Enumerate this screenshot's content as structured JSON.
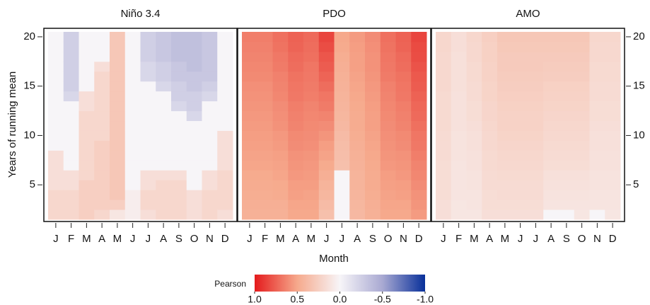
{
  "figure": {
    "xlabel": "Month",
    "ylabel": "Years of running mean",
    "colorbar": {
      "label": "Pearson",
      "lim": [
        1,
        -1
      ],
      "ticks": [
        {
          "value": 1,
          "label": "1.0"
        },
        {
          "value": 0.5,
          "label": "0.5"
        },
        {
          "value": 0,
          "label": "0.0"
        },
        {
          "value": -0.5,
          "label": "-0.5"
        },
        {
          "value": -1,
          "label": "-1.0"
        }
      ],
      "colors": [
        {
          "value": 1,
          "color": "#e41a1c"
        },
        {
          "value": 0.5,
          "color": "#f6a98c"
        },
        {
          "value": 0,
          "color": "#f7f5f8"
        },
        {
          "value": -0.5,
          "color": "#a9a9d2"
        },
        {
          "value": -1,
          "color": "#08309a"
        }
      ]
    }
  },
  "chart_data": [
    {
      "type": "heatmap",
      "title": "Niño 3.4",
      "ytick_side": "left",
      "categories": [
        "J",
        "F",
        "M",
        "A",
        "M",
        "J",
        "J",
        "A",
        "S",
        "O",
        "N",
        "D"
      ],
      "y": [
        2,
        3,
        4,
        5,
        6,
        7,
        8,
        9,
        10,
        11,
        12,
        13,
        14,
        15,
        16,
        17,
        18,
        19,
        20
      ],
      "ylim": [
        1.5,
        20.5
      ],
      "yticks": [
        5,
        10,
        15,
        20
      ],
      "values": [
        [
          0.2,
          0.2,
          0.2,
          0.15,
          0.15,
          0.15,
          0.15,
          0,
          0,
          0,
          0,
          0,
          0,
          0,
          0,
          0,
          0,
          0,
          0
        ],
        [
          0.2,
          0.2,
          0.2,
          0.15,
          0.15,
          0,
          0,
          0,
          0,
          0,
          0,
          0,
          -0.2,
          -0.25,
          -0.25,
          -0.25,
          -0.25,
          -0.25,
          -0.25
        ],
        [
          0.25,
          0.25,
          0.25,
          0.25,
          0.2,
          0.2,
          0.2,
          0.2,
          0.2,
          0.2,
          0.2,
          0.15,
          0.15,
          0,
          0,
          0,
          0,
          0,
          0
        ],
        [
          0.2,
          0.25,
          0.25,
          0.25,
          0.25,
          0.25,
          0.25,
          0.25,
          0.2,
          0.2,
          0.2,
          0.2,
          0.2,
          0.2,
          0.2,
          0.15,
          0,
          0,
          0
        ],
        [
          0.1,
          0.25,
          0.3,
          0.3,
          0.3,
          0.3,
          0.3,
          0.3,
          0.3,
          0.3,
          0.3,
          0.3,
          0.3,
          0.3,
          0.3,
          0.3,
          0.3,
          0.3,
          0.3
        ],
        [
          0.05,
          0.05,
          0.05,
          0,
          0,
          0,
          0,
          0,
          0,
          0,
          0,
          0,
          0,
          0,
          0,
          0,
          0,
          0,
          0
        ],
        [
          0.15,
          0.2,
          0.2,
          0.15,
          0.15,
          0,
          0,
          0,
          0,
          0,
          0,
          0,
          0,
          0,
          -0.2,
          -0.2,
          -0.25,
          -0.25,
          -0.25
        ],
        [
          0.2,
          0.2,
          0.2,
          0.2,
          0.15,
          0,
          0,
          0,
          0,
          0,
          0,
          0,
          0,
          -0.2,
          -0.25,
          -0.25,
          -0.3,
          -0.3,
          -0.3
        ],
        [
          0.2,
          0.2,
          0.2,
          0.2,
          0.15,
          0,
          0,
          0,
          0,
          0,
          0,
          -0.2,
          -0.25,
          -0.25,
          -0.3,
          -0.3,
          -0.35,
          -0.35,
          -0.35
        ],
        [
          0.15,
          0.15,
          0.15,
          0,
          0,
          0,
          0,
          0,
          0,
          0,
          -0.2,
          -0.25,
          -0.25,
          -0.3,
          -0.3,
          -0.35,
          -0.35,
          -0.35,
          -0.35
        ],
        [
          0.2,
          0.2,
          0.2,
          0.15,
          0.15,
          0,
          0,
          0,
          0,
          0,
          0,
          0,
          -0.2,
          -0.25,
          -0.3,
          -0.3,
          -0.3,
          -0.3,
          -0.3
        ],
        [
          0.15,
          0.2,
          0.2,
          0.2,
          0.2,
          0.15,
          0.15,
          0.15,
          0.15,
          0,
          0,
          0,
          0,
          0,
          0,
          0,
          0,
          0,
          0
        ]
      ]
    },
    {
      "type": "heatmap",
      "title": "PDO",
      "categories": [
        "J",
        "F",
        "M",
        "A",
        "M",
        "J",
        "J",
        "A",
        "S",
        "O",
        "N",
        "D"
      ],
      "y": [
        2,
        3,
        4,
        5,
        6,
        7,
        8,
        9,
        10,
        11,
        12,
        13,
        14,
        15,
        16,
        17,
        18,
        19,
        20
      ],
      "ylim": [
        1.5,
        20.5
      ],
      "values": [
        [
          0.45,
          0.46,
          0.47,
          0.48,
          0.49,
          0.51,
          0.52,
          0.53,
          0.54,
          0.55,
          0.56,
          0.57,
          0.58,
          0.59,
          0.61,
          0.62,
          0.63,
          0.64,
          0.65
        ],
        [
          0.45,
          0.46,
          0.47,
          0.48,
          0.49,
          0.51,
          0.52,
          0.53,
          0.54,
          0.55,
          0.56,
          0.57,
          0.58,
          0.59,
          0.61,
          0.62,
          0.63,
          0.64,
          0.65
        ],
        [
          0.45,
          0.46,
          0.48,
          0.49,
          0.51,
          0.52,
          0.53,
          0.55,
          0.56,
          0.58,
          0.59,
          0.6,
          0.62,
          0.63,
          0.64,
          0.66,
          0.67,
          0.69,
          0.7
        ],
        [
          0.5,
          0.51,
          0.53,
          0.54,
          0.56,
          0.57,
          0.58,
          0.6,
          0.61,
          0.63,
          0.64,
          0.65,
          0.67,
          0.68,
          0.69,
          0.71,
          0.72,
          0.74,
          0.75
        ],
        [
          0.5,
          0.51,
          0.52,
          0.54,
          0.55,
          0.56,
          0.57,
          0.59,
          0.6,
          0.61,
          0.62,
          0.63,
          0.65,
          0.66,
          0.67,
          0.68,
          0.7,
          0.71,
          0.72
        ],
        [
          0.35,
          0.38,
          0.41,
          0.43,
          0.46,
          0.49,
          0.52,
          0.54,
          0.57,
          0.6,
          0.63,
          0.66,
          0.68,
          0.71,
          0.74,
          0.77,
          0.79,
          0.82,
          0.85
        ],
        [
          0,
          0,
          0,
          0,
          0,
          0.35,
          0.36,
          0.37,
          0.38,
          0.4,
          0.41,
          0.42,
          0.43,
          0.44,
          0.45,
          0.46,
          0.47,
          0.49,
          0.5
        ],
        [
          0.4,
          0.41,
          0.42,
          0.43,
          0.43,
          0.44,
          0.45,
          0.46,
          0.47,
          0.48,
          0.48,
          0.49,
          0.5,
          0.51,
          0.52,
          0.53,
          0.53,
          0.54,
          0.55
        ],
        [
          0.45,
          0.46,
          0.47,
          0.48,
          0.48,
          0.49,
          0.5,
          0.51,
          0.52,
          0.53,
          0.53,
          0.54,
          0.55,
          0.56,
          0.57,
          0.58,
          0.58,
          0.59,
          0.6
        ],
        [
          0.5,
          0.51,
          0.52,
          0.53,
          0.54,
          0.56,
          0.57,
          0.58,
          0.59,
          0.6,
          0.61,
          0.62,
          0.63,
          0.64,
          0.66,
          0.67,
          0.68,
          0.69,
          0.7
        ],
        [
          0.5,
          0.51,
          0.53,
          0.54,
          0.56,
          0.57,
          0.58,
          0.6,
          0.61,
          0.63,
          0.64,
          0.65,
          0.67,
          0.68,
          0.69,
          0.71,
          0.72,
          0.74,
          0.75
        ],
        [
          0.55,
          0.57,
          0.58,
          0.6,
          0.62,
          0.63,
          0.65,
          0.67,
          0.68,
          0.7,
          0.72,
          0.73,
          0.75,
          0.77,
          0.78,
          0.8,
          0.82,
          0.83,
          0.85
        ]
      ]
    },
    {
      "type": "heatmap",
      "title": "AMO",
      "ytick_side": "right",
      "categories": [
        "J",
        "F",
        "M",
        "A",
        "M",
        "J",
        "J",
        "A",
        "S",
        "O",
        "N",
        "D"
      ],
      "y": [
        2,
        3,
        4,
        5,
        6,
        7,
        8,
        9,
        10,
        11,
        12,
        13,
        14,
        15,
        16,
        17,
        18,
        19,
        20
      ],
      "ylim": [
        1.5,
        20.5
      ],
      "yticks": [
        5,
        10,
        15,
        20
      ],
      "values": [
        [
          0.15,
          0.15,
          0.16,
          0.16,
          0.16,
          0.16,
          0.17,
          0.17,
          0.17,
          0.18,
          0.18,
          0.18,
          0.18,
          0.19,
          0.19,
          0.19,
          0.19,
          0.2,
          0.2
        ],
        [
          0.1,
          0.1,
          0.11,
          0.11,
          0.11,
          0.11,
          0.12,
          0.12,
          0.12,
          0.13,
          0.13,
          0.13,
          0.13,
          0.14,
          0.14,
          0.14,
          0.14,
          0.15,
          0.15
        ],
        [
          0.1,
          0.11,
          0.11,
          0.12,
          0.12,
          0.13,
          0.13,
          0.14,
          0.14,
          0.15,
          0.16,
          0.16,
          0.17,
          0.17,
          0.18,
          0.18,
          0.19,
          0.19,
          0.2
        ],
        [
          0.15,
          0.16,
          0.16,
          0.17,
          0.17,
          0.18,
          0.18,
          0.19,
          0.19,
          0.2,
          0.21,
          0.21,
          0.22,
          0.22,
          0.23,
          0.23,
          0.24,
          0.24,
          0.25
        ],
        [
          0.15,
          0.16,
          0.17,
          0.17,
          0.18,
          0.19,
          0.2,
          0.21,
          0.22,
          0.23,
          0.23,
          0.24,
          0.25,
          0.26,
          0.27,
          0.28,
          0.28,
          0.29,
          0.3
        ],
        [
          0.15,
          0.16,
          0.17,
          0.17,
          0.18,
          0.19,
          0.2,
          0.21,
          0.22,
          0.23,
          0.23,
          0.24,
          0.25,
          0.26,
          0.27,
          0.28,
          0.28,
          0.29,
          0.3
        ],
        [
          0.15,
          0.16,
          0.17,
          0.17,
          0.18,
          0.19,
          0.2,
          0.21,
          0.22,
          0.23,
          0.23,
          0.24,
          0.25,
          0.26,
          0.27,
          0.28,
          0.28,
          0.29,
          0.3
        ],
        [
          0,
          0.11,
          0.12,
          0.13,
          0.14,
          0.16,
          0.17,
          0.18,
          0.19,
          0.2,
          0.21,
          0.22,
          0.23,
          0.24,
          0.26,
          0.27,
          0.28,
          0.29,
          0.3
        ],
        [
          0,
          0.11,
          0.12,
          0.13,
          0.14,
          0.16,
          0.17,
          0.18,
          0.19,
          0.2,
          0.21,
          0.22,
          0.23,
          0.24,
          0.26,
          0.27,
          0.28,
          0.29,
          0.3
        ],
        [
          0.1,
          0.11,
          0.12,
          0.13,
          0.14,
          0.16,
          0.17,
          0.18,
          0.19,
          0.2,
          0.21,
          0.22,
          0.23,
          0.24,
          0.26,
          0.27,
          0.28,
          0.29,
          0.3
        ],
        [
          0,
          0.11,
          0.11,
          0.12,
          0.12,
          0.13,
          0.13,
          0.14,
          0.14,
          0.15,
          0.16,
          0.16,
          0.17,
          0.17,
          0.18,
          0.18,
          0.19,
          0.19,
          0.2
        ],
        [
          0.1,
          0.11,
          0.11,
          0.12,
          0.12,
          0.13,
          0.13,
          0.14,
          0.14,
          0.15,
          0.16,
          0.16,
          0.17,
          0.17,
          0.18,
          0.18,
          0.19,
          0.19,
          0.2
        ]
      ]
    }
  ]
}
